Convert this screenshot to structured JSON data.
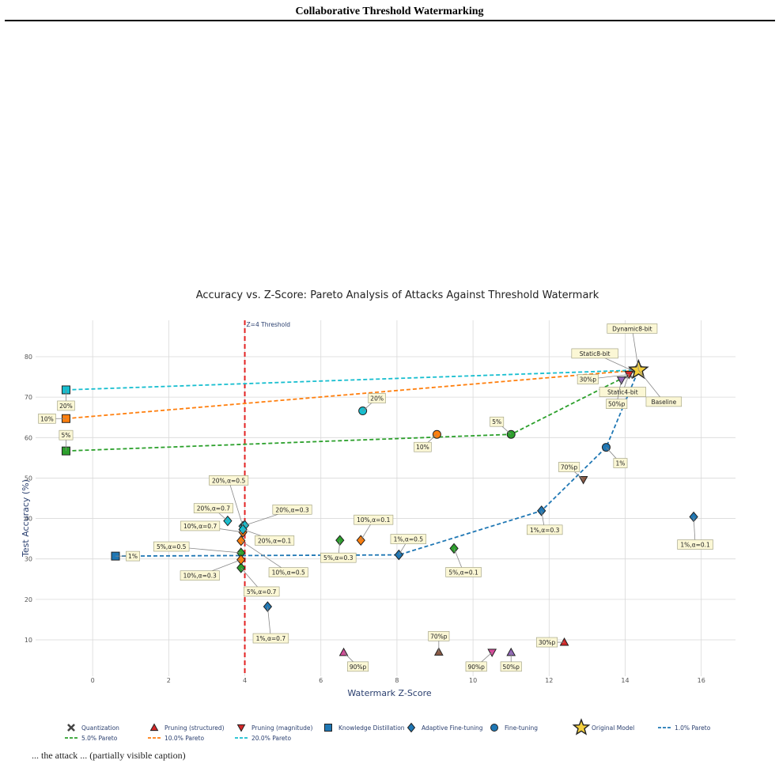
{
  "header": {
    "title": "Collaborative Threshold Watermarking"
  },
  "footer": {
    "text": "... the attack ... (partially visible caption)"
  },
  "chart_data": {
    "type": "scatter",
    "title": "Accuracy vs. Z-Score: Pareto Analysis of Attacks Against Threshold Watermark",
    "xlabel": "Watermark Z-Score",
    "ylabel": "Test Accuracy (%)",
    "xlim": [
      -1.5,
      16.9
    ],
    "ylim": [
      1,
      89
    ],
    "xticks": [
      0,
      2,
      4,
      6,
      8,
      10,
      12,
      14,
      16
    ],
    "yticks": [
      10,
      20,
      30,
      40,
      50,
      60,
      70,
      80
    ],
    "grid": true,
    "threshold": {
      "x": 4,
      "label": "Z=4 Threshold",
      "color": "#e32222"
    },
    "legend_position": "bottom",
    "series": [
      {
        "name": "Quantization",
        "marker": "x",
        "color": "#777777",
        "points": [
          {
            "x": 14.2,
            "y": 76.5,
            "label": "Static8-bit"
          },
          {
            "x": 14.35,
            "y": 76.8,
            "label": "Dynamic8-bit"
          },
          {
            "x": 14.1,
            "y": 75.6,
            "label": "Static4-bit"
          }
        ]
      },
      {
        "name": "Pruning (structured)",
        "marker": "triangle-up",
        "color_by_label": true,
        "points": [
          {
            "x": 6.6,
            "y": 6.9,
            "label": "90%p",
            "color": "#d84a9a"
          },
          {
            "x": 9.1,
            "y": 7.0,
            "label": "70%p",
            "color": "#8b5a44"
          },
          {
            "x": 11.0,
            "y": 6.9,
            "label": "50%p",
            "color": "#9467bd"
          },
          {
            "x": 12.4,
            "y": 9.4,
            "label": "30%p",
            "color": "#d62728"
          }
        ]
      },
      {
        "name": "Pruning (magnitude)",
        "marker": "triangle-down",
        "color_by_label": true,
        "points": [
          {
            "x": 10.5,
            "y": 6.9,
            "label": "90%p",
            "color": "#d84a9a"
          },
          {
            "x": 12.9,
            "y": 49.6,
            "label": "70%p",
            "color": "#8b5a44"
          },
          {
            "x": 13.9,
            "y": 74.2,
            "label": "50%p",
            "color": "#9467bd"
          },
          {
            "x": 14.1,
            "y": 75.6,
            "label": "30%p",
            "color": "#d62728"
          }
        ]
      },
      {
        "name": "Knowledge Distillation",
        "marker": "square",
        "color_by_label": true,
        "points": [
          {
            "x": 0.6,
            "y": 30.7,
            "label": "1%",
            "color": "#1f77b4"
          },
          {
            "x": -0.7,
            "y": 56.7,
            "label": "5%",
            "color": "#2ca02c"
          },
          {
            "x": -0.7,
            "y": 64.7,
            "label": "10%",
            "color": "#ff7f0e"
          },
          {
            "x": -0.7,
            "y": 71.8,
            "label": "20%",
            "color": "#17becf"
          }
        ]
      },
      {
        "name": "Adaptive Fine-tuning",
        "marker": "diamond",
        "color_by_label": true,
        "points": [
          {
            "x": 4.6,
            "y": 18.2,
            "label": "1%,α=0.7",
            "color": "#1f77b4"
          },
          {
            "x": 8.05,
            "y": 31.0,
            "label": "1%,α=0.5",
            "color": "#1f77b4"
          },
          {
            "x": 11.8,
            "y": 41.9,
            "label": "1%,α=0.3",
            "color": "#1f77b4"
          },
          {
            "x": 15.8,
            "y": 40.4,
            "label": "1%,α=0.1",
            "color": "#1f77b4"
          },
          {
            "x": 3.9,
            "y": 27.8,
            "label": "5%,α=0.7",
            "color": "#2ca02c"
          },
          {
            "x": 3.9,
            "y": 31.5,
            "label": "5%,α=0.5",
            "color": "#2ca02c"
          },
          {
            "x": 6.5,
            "y": 34.6,
            "label": "5%,α=0.3",
            "color": "#2ca02c"
          },
          {
            "x": 9.5,
            "y": 32.6,
            "label": "5%,α=0.1",
            "color": "#2ca02c"
          },
          {
            "x": 3.9,
            "y": 29.8,
            "label": "10%,α=0.3",
            "color": "#ff7f0e"
          },
          {
            "x": 3.9,
            "y": 34.5,
            "label": "10%,α=0.5",
            "color": "#ff7f0e"
          },
          {
            "x": 3.95,
            "y": 36.6,
            "label": "10%,α=0.7",
            "color": "#ff7f0e"
          },
          {
            "x": 7.05,
            "y": 34.6,
            "label": "10%,α=0.1",
            "color": "#ff7f0e"
          },
          {
            "x": 3.55,
            "y": 39.4,
            "label": "20%,α=0.7",
            "color": "#17becf"
          },
          {
            "x": 3.95,
            "y": 38.1,
            "label": "20%,α=0.5",
            "color": "#17becf"
          },
          {
            "x": 4.0,
            "y": 38.3,
            "label": "20%,α=0.3",
            "color": "#17becf"
          },
          {
            "x": 3.95,
            "y": 37.3,
            "label": "20%,α=0.1",
            "color": "#17becf"
          }
        ]
      },
      {
        "name": "Fine-tuning",
        "marker": "circle",
        "color_by_label": true,
        "points": [
          {
            "x": 13.5,
            "y": 57.6,
            "label": "1%",
            "color": "#1f77b4"
          },
          {
            "x": 11.0,
            "y": 60.8,
            "label": "5%",
            "color": "#2ca02c"
          },
          {
            "x": 9.05,
            "y": 60.8,
            "label": "10%",
            "color": "#ff7f0e"
          },
          {
            "x": 7.1,
            "y": 66.6,
            "label": "20%",
            "color": "#17becf"
          }
        ]
      },
      {
        "name": "Original Model",
        "marker": "star",
        "color": "#f4d03f",
        "points": [
          {
            "x": 14.35,
            "y": 76.7,
            "label": "Baseline"
          }
        ]
      }
    ],
    "pareto": [
      {
        "name": "1.0% Pareto",
        "color": "#1f77b4",
        "points": [
          [
            0.6,
            30.7
          ],
          [
            8.05,
            31.0
          ],
          [
            11.8,
            41.9
          ],
          [
            13.5,
            57.6
          ],
          [
            14.35,
            76.7
          ]
        ]
      },
      {
        "name": "5.0% Pareto",
        "color": "#2ca02c",
        "points": [
          [
            -0.7,
            56.7
          ],
          [
            11.0,
            60.8
          ],
          [
            14.35,
            76.7
          ]
        ]
      },
      {
        "name": "10.0% Pareto",
        "color": "#ff7f0e",
        "points": [
          [
            -0.7,
            64.7
          ],
          [
            14.35,
            76.7
          ]
        ]
      },
      {
        "name": "20.0% Pareto",
        "color": "#17becf",
        "points": [
          [
            -0.7,
            71.8
          ],
          [
            14.35,
            76.7
          ]
        ]
      }
    ]
  }
}
